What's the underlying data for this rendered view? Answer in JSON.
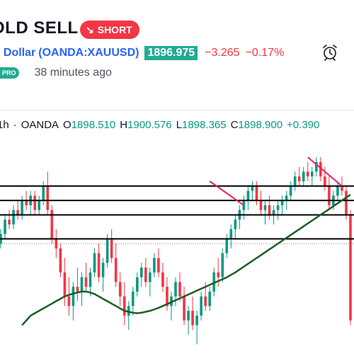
{
  "header": {
    "title": "OLD SELL",
    "badge": "SHORT",
    "symbol_name": ". Dollar",
    "symbol_code": "(OANDA:XAUUSD)",
    "price": "1896.975",
    "change": "−3.265",
    "change_pct": "−0.17%",
    "pro_badge": "PRO",
    "time_ago": "38 minutes ago",
    "icons": {
      "badge": "arrow-down-right-icon",
      "alarm": "alarm-clock-icon"
    }
  },
  "ohlc": {
    "timeframe": "1h",
    "separator": "·",
    "broker": "OANDA",
    "open_label": "O",
    "open": "1898.510",
    "high_label": "H",
    "high": "1900.576",
    "low_label": "L",
    "low": "1898.365",
    "close_label": "C",
    "close": "1898.900",
    "change": "+0.390"
  },
  "colors": {
    "up": "#089981",
    "down": "#f23645",
    "ma": "#1b5e20",
    "trend": "#e91e63",
    "price_badge": "#22ab94",
    "line": "#000000"
  },
  "chart_data": {
    "type": "candlestick",
    "ylim": [
      1860,
      1905
    ],
    "horizontal_levels": [
      1895,
      1892,
      1889,
      1884
    ],
    "dotted_level": 1883,
    "candles": [
      [
        1883,
        1886,
        1882,
        1885
      ],
      [
        1885,
        1889,
        1884,
        1888
      ],
      [
        1888,
        1890,
        1886,
        1887
      ],
      [
        1887,
        1891,
        1886,
        1890
      ],
      [
        1890,
        1892,
        1888,
        1889
      ],
      [
        1889,
        1893,
        1888,
        1892
      ],
      [
        1892,
        1894,
        1890,
        1891
      ],
      [
        1891,
        1894,
        1889,
        1893
      ],
      [
        1893,
        1894,
        1889,
        1890
      ],
      [
        1890,
        1893,
        1889,
        1892
      ],
      [
        1892,
        1896,
        1891,
        1895
      ],
      [
        1895,
        1898,
        1889,
        1890
      ],
      [
        1890,
        1891,
        1883,
        1884
      ],
      [
        1884,
        1886,
        1880,
        1882
      ],
      [
        1882,
        1883,
        1876,
        1877
      ],
      [
        1877,
        1880,
        1870,
        1872
      ],
      [
        1872,
        1876,
        1868,
        1870
      ],
      [
        1870,
        1875,
        1867,
        1874
      ],
      [
        1874,
        1878,
        1871,
        1873
      ],
      [
        1873,
        1877,
        1870,
        1876
      ],
      [
        1876,
        1879,
        1873,
        1874
      ],
      [
        1874,
        1878,
        1872,
        1877
      ],
      [
        1877,
        1882,
        1876,
        1881
      ],
      [
        1881,
        1883,
        1875,
        1876
      ],
      [
        1876,
        1880,
        1873,
        1879
      ],
      [
        1879,
        1885,
        1878,
        1884
      ],
      [
        1884,
        1886,
        1879,
        1880
      ],
      [
        1880,
        1883,
        1874,
        1875
      ],
      [
        1875,
        1877,
        1870,
        1872
      ],
      [
        1872,
        1875,
        1866,
        1868
      ],
      [
        1868,
        1871,
        1865,
        1870
      ],
      [
        1870,
        1874,
        1868,
        1873
      ],
      [
        1873,
        1877,
        1872,
        1876
      ],
      [
        1876,
        1879,
        1874,
        1878
      ],
      [
        1878,
        1880,
        1874,
        1875
      ],
      [
        1875,
        1878,
        1872,
        1877
      ],
      [
        1877,
        1881,
        1876,
        1880
      ],
      [
        1880,
        1882,
        1876,
        1877
      ],
      [
        1877,
        1879,
        1873,
        1874
      ],
      [
        1874,
        1876,
        1869,
        1870
      ],
      [
        1870,
        1873,
        1867,
        1872
      ],
      [
        1872,
        1876,
        1870,
        1875
      ],
      [
        1875,
        1877,
        1871,
        1872
      ],
      [
        1872,
        1874,
        1866,
        1867
      ],
      [
        1867,
        1870,
        1864,
        1869
      ],
      [
        1869,
        1872,
        1865,
        1866
      ],
      [
        1866,
        1869,
        1862,
        1868
      ],
      [
        1868,
        1873,
        1867,
        1872
      ],
      [
        1872,
        1875,
        1869,
        1870
      ],
      [
        1870,
        1874,
        1869,
        1873
      ],
      [
        1873,
        1878,
        1872,
        1877
      ],
      [
        1877,
        1880,
        1874,
        1876
      ],
      [
        1876,
        1882,
        1875,
        1881
      ],
      [
        1881,
        1885,
        1880,
        1884
      ],
      [
        1884,
        1887,
        1882,
        1886
      ],
      [
        1886,
        1889,
        1884,
        1888
      ],
      [
        1888,
        1891,
        1886,
        1890
      ],
      [
        1890,
        1893,
        1888,
        1892
      ],
      [
        1892,
        1895,
        1890,
        1894
      ],
      [
        1894,
        1896,
        1892,
        1895
      ],
      [
        1895,
        1896,
        1891,
        1892
      ],
      [
        1892,
        1894,
        1889,
        1890
      ],
      [
        1890,
        1892,
        1887,
        1891
      ],
      [
        1891,
        1893,
        1888,
        1889
      ],
      [
        1889,
        1891,
        1887,
        1890
      ],
      [
        1890,
        1892,
        1888,
        1891
      ],
      [
        1891,
        1893,
        1889,
        1892
      ],
      [
        1892,
        1894,
        1890,
        1893
      ],
      [
        1893,
        1896,
        1892,
        1895
      ],
      [
        1895,
        1898,
        1894,
        1897
      ],
      [
        1897,
        1899,
        1895,
        1896
      ],
      [
        1896,
        1899,
        1895,
        1898
      ],
      [
        1898,
        1900,
        1896,
        1897
      ],
      [
        1897,
        1899,
        1895,
        1898
      ],
      [
        1898,
        1901,
        1897,
        1900
      ],
      [
        1900,
        1901,
        1896,
        1897
      ],
      [
        1897,
        1899,
        1894,
        1895
      ],
      [
        1895,
        1897,
        1890,
        1891
      ],
      [
        1891,
        1894,
        1890,
        1893
      ],
      [
        1893,
        1896,
        1892,
        1895
      ],
      [
        1895,
        1897,
        1893,
        1894
      ],
      [
        1894,
        1895,
        1888,
        1889
      ],
      [
        1889,
        1890,
        1866,
        1867
      ]
    ],
    "moving_average": [
      1866,
      1867,
      1868,
      1868.5,
      1869,
      1869.5,
      1870,
      1870.5,
      1871,
      1871.5,
      1872,
      1872.3,
      1872.6,
      1872.8,
      1873,
      1873,
      1872.8,
      1872.5,
      1872,
      1871.5,
      1871,
      1870.5,
      1870,
      1869.5,
      1869,
      1868.8,
      1868.6,
      1868.5,
      1868.6,
      1868.8,
      1869,
      1869.3,
      1869.6,
      1870,
      1870.4,
      1870.8,
      1871.2,
      1871.6,
      1872,
      1872.4,
      1872.8,
      1873.2,
      1873.6,
      1874,
      1874.4,
      1874.8,
      1875.2,
      1875.6,
      1876,
      1876.5,
      1877,
      1877.6,
      1878.2,
      1878.8,
      1879.4,
      1880,
      1880.6,
      1881.2,
      1881.8,
      1882.4,
      1883,
      1883.6,
      1884.2,
      1884.8,
      1885.4,
      1886,
      1886.6,
      1887.2,
      1887.8,
      1888.4,
      1889,
      1889.6,
      1890.2,
      1890.8,
      1891.4,
      1892,
      1892.6,
      1893.2
    ],
    "trendlines": [
      {
        "from": [
          49,
          1896
        ],
        "to": [
          57,
          1891
        ]
      },
      {
        "from": [
          72,
          1901
        ],
        "to": [
          80,
          1895
        ]
      }
    ]
  }
}
